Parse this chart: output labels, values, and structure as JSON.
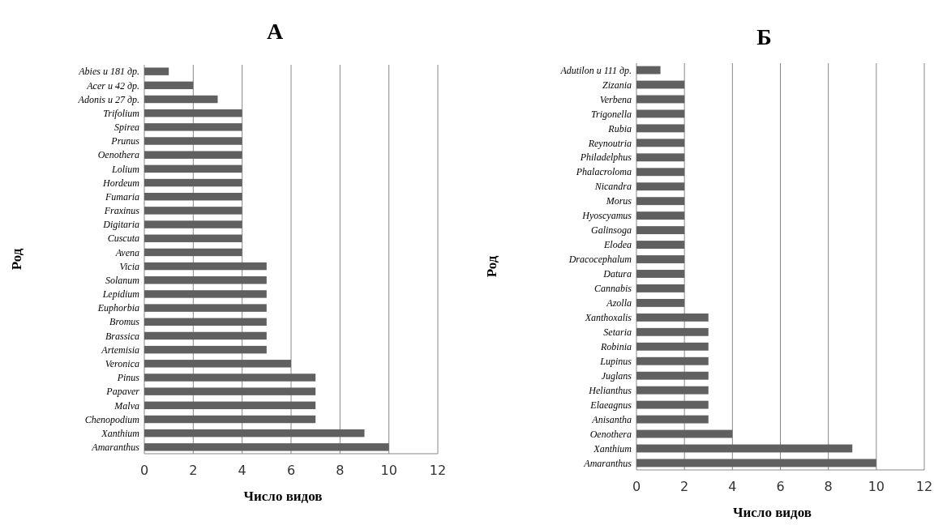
{
  "chart_data": [
    {
      "type": "bar",
      "orientation": "horizontal",
      "title": "А",
      "xlabel": "Число видов",
      "ylabel": "Род",
      "categories": [
        "Abies и 181 др.",
        "Acer и 42 др.",
        "Adonis и 27 др.",
        "Trifolium",
        "Spirea",
        "Prunus",
        "Oenothera",
        "Lolium",
        "Hordeum",
        "Fumaria",
        "Fraxinus",
        "Digitaria",
        "Cuscuta",
        "Avena",
        "Vicia",
        "Solanum",
        "Lepidium",
        "Euphorbia",
        "Bromus",
        "Brassica",
        "Artemisia",
        "Veronica",
        "Pinus",
        "Papaver",
        "Malva",
        "Chenopodium",
        "Xanthium",
        "Amaranthus"
      ],
      "values": [
        1,
        2,
        3,
        4,
        4,
        4,
        4,
        4,
        4,
        4,
        4,
        4,
        4,
        4,
        5,
        5,
        5,
        5,
        5,
        5,
        5,
        6,
        7,
        7,
        7,
        7,
        9,
        10
      ],
      "color": "#606060",
      "xlim": [
        0,
        12
      ],
      "xticks": [
        0,
        2,
        4,
        6,
        8,
        10,
        12
      ],
      "grid": "x"
    },
    {
      "type": "bar",
      "orientation": "horizontal",
      "title": "Б",
      "xlabel": "Число видов",
      "ylabel": "Род",
      "categories": [
        "Adutilon и 111 др.",
        "Zizania",
        "Verbena",
        "Trigonella",
        "Rubia",
        "Reynoutria",
        "Philadelphus",
        "Phalacroloma",
        "Nicandra",
        "Morus",
        "Hyoscyamus",
        "Galinsoga",
        "Elodea",
        "Dracocephalum",
        "Datura",
        "Cannabis",
        "Azolla",
        "Xanthoxalis",
        "Setaria",
        "Robinia",
        "Lupinus",
        "Juglans",
        "Helianthus",
        "Elaeagnus",
        "Anisantha",
        "Oenothera",
        "Xanthium",
        "Amaranthus"
      ],
      "values": [
        1,
        2,
        2,
        2,
        2,
        2,
        2,
        2,
        2,
        2,
        2,
        2,
        2,
        2,
        2,
        2,
        2,
        3,
        3,
        3,
        3,
        3,
        3,
        3,
        3,
        4,
        9,
        10
      ],
      "color": "#606060",
      "xlim": [
        0,
        12
      ],
      "xticks": [
        0,
        2,
        4,
        6,
        8,
        10,
        12
      ],
      "grid": "x"
    }
  ]
}
